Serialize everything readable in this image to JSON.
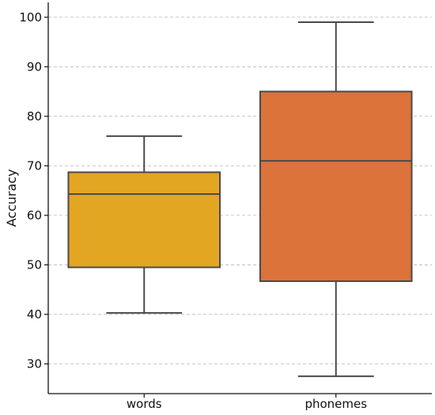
{
  "chart_data": {
    "type": "box",
    "title": "",
    "xlabel": "",
    "ylabel": "Accuracy",
    "ylim": [
      24,
      103
    ],
    "yticks": [
      30,
      40,
      50,
      60,
      70,
      80,
      90,
      100
    ],
    "grid": true,
    "categories": [
      "words",
      "phonemes"
    ],
    "boxes": [
      {
        "label": "words",
        "whisker_low": 40.3,
        "q1": 49.5,
        "median": 64.3,
        "q3": 68.7,
        "whisker_high": 76.0,
        "color": "#E3A623"
      },
      {
        "label": "phonemes",
        "whisker_low": 27.5,
        "q1": 46.7,
        "median": 71.0,
        "q3": 85.0,
        "whisker_high": 99.0,
        "color": "#DB733A"
      }
    ]
  }
}
